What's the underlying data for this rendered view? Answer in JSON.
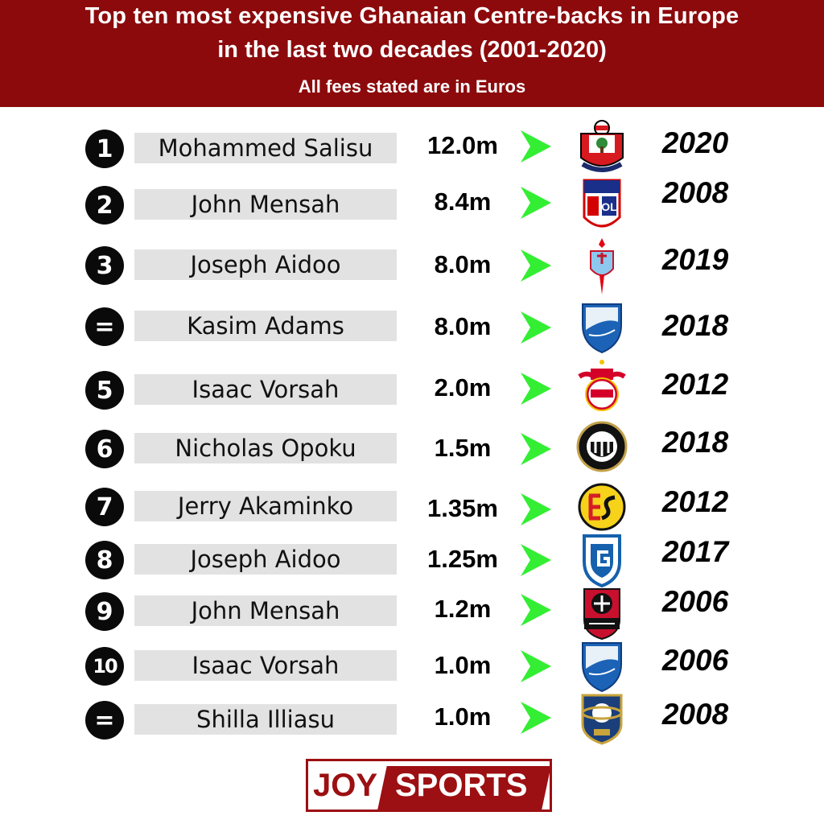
{
  "header": {
    "title_line1": "Top ten most expensive Ghanaian Centre-backs in Europe",
    "title_line2": "in the last two decades (2001-2020)",
    "subtitle": "All fees stated are in Euros"
  },
  "colors": {
    "banner": "#8c0a0c",
    "arrow": "#33ee33",
    "name_bar": "#e2e2e2",
    "brand": "#9c0f12"
  },
  "rows": [
    {
      "rank": "1",
      "name": "Mohammed Salisu",
      "fee": "12.0m",
      "year": "2020",
      "club_icon": "southampton-crest-icon"
    },
    {
      "rank": "2",
      "name": "John Mensah",
      "fee": "8.4m",
      "year": "2008",
      "club_icon": "lyon-crest-icon"
    },
    {
      "rank": "3",
      "name": "Joseph Aidoo",
      "fee": "8.0m",
      "year": "2019",
      "club_icon": "celta-vigo-crest-icon"
    },
    {
      "rank": "=",
      "name": "Kasim Adams",
      "fee": "8.0m",
      "year": "2018",
      "club_icon": "hoffenheim-crest-icon"
    },
    {
      "rank": "5",
      "name": "Isaac Vorsah",
      "fee": "2.0m",
      "year": "2012",
      "club_icon": "rb-salzburg-crest-icon"
    },
    {
      "rank": "6",
      "name": "Nicholas Opoku",
      "fee": "1.5m",
      "year": "2018",
      "club_icon": "udinese-crest-icon"
    },
    {
      "rank": "7",
      "name": "Jerry Akaminko",
      "fee": "1.35m",
      "year": "2012",
      "club_icon": "eskisehirspor-crest-icon"
    },
    {
      "rank": "8",
      "name": "Joseph Aidoo",
      "fee": "1.25m",
      "year": "2017",
      "club_icon": "genk-crest-icon"
    },
    {
      "rank": "9",
      "name": "John Mensah",
      "fee": "1.2m",
      "year": "2006",
      "club_icon": "rennes-crest-icon"
    },
    {
      "rank": "10",
      "name": "Isaac Vorsah",
      "fee": "1.0m",
      "year": "2006",
      "club_icon": "hoffenheim-crest-icon"
    },
    {
      "rank": "=",
      "name": "Shilla Illiasu",
      "fee": "1.0m",
      "year": "2008",
      "club_icon": "saturn-crest-icon"
    }
  ],
  "brand": {
    "left": "JOY",
    "right": "SPORTS"
  }
}
